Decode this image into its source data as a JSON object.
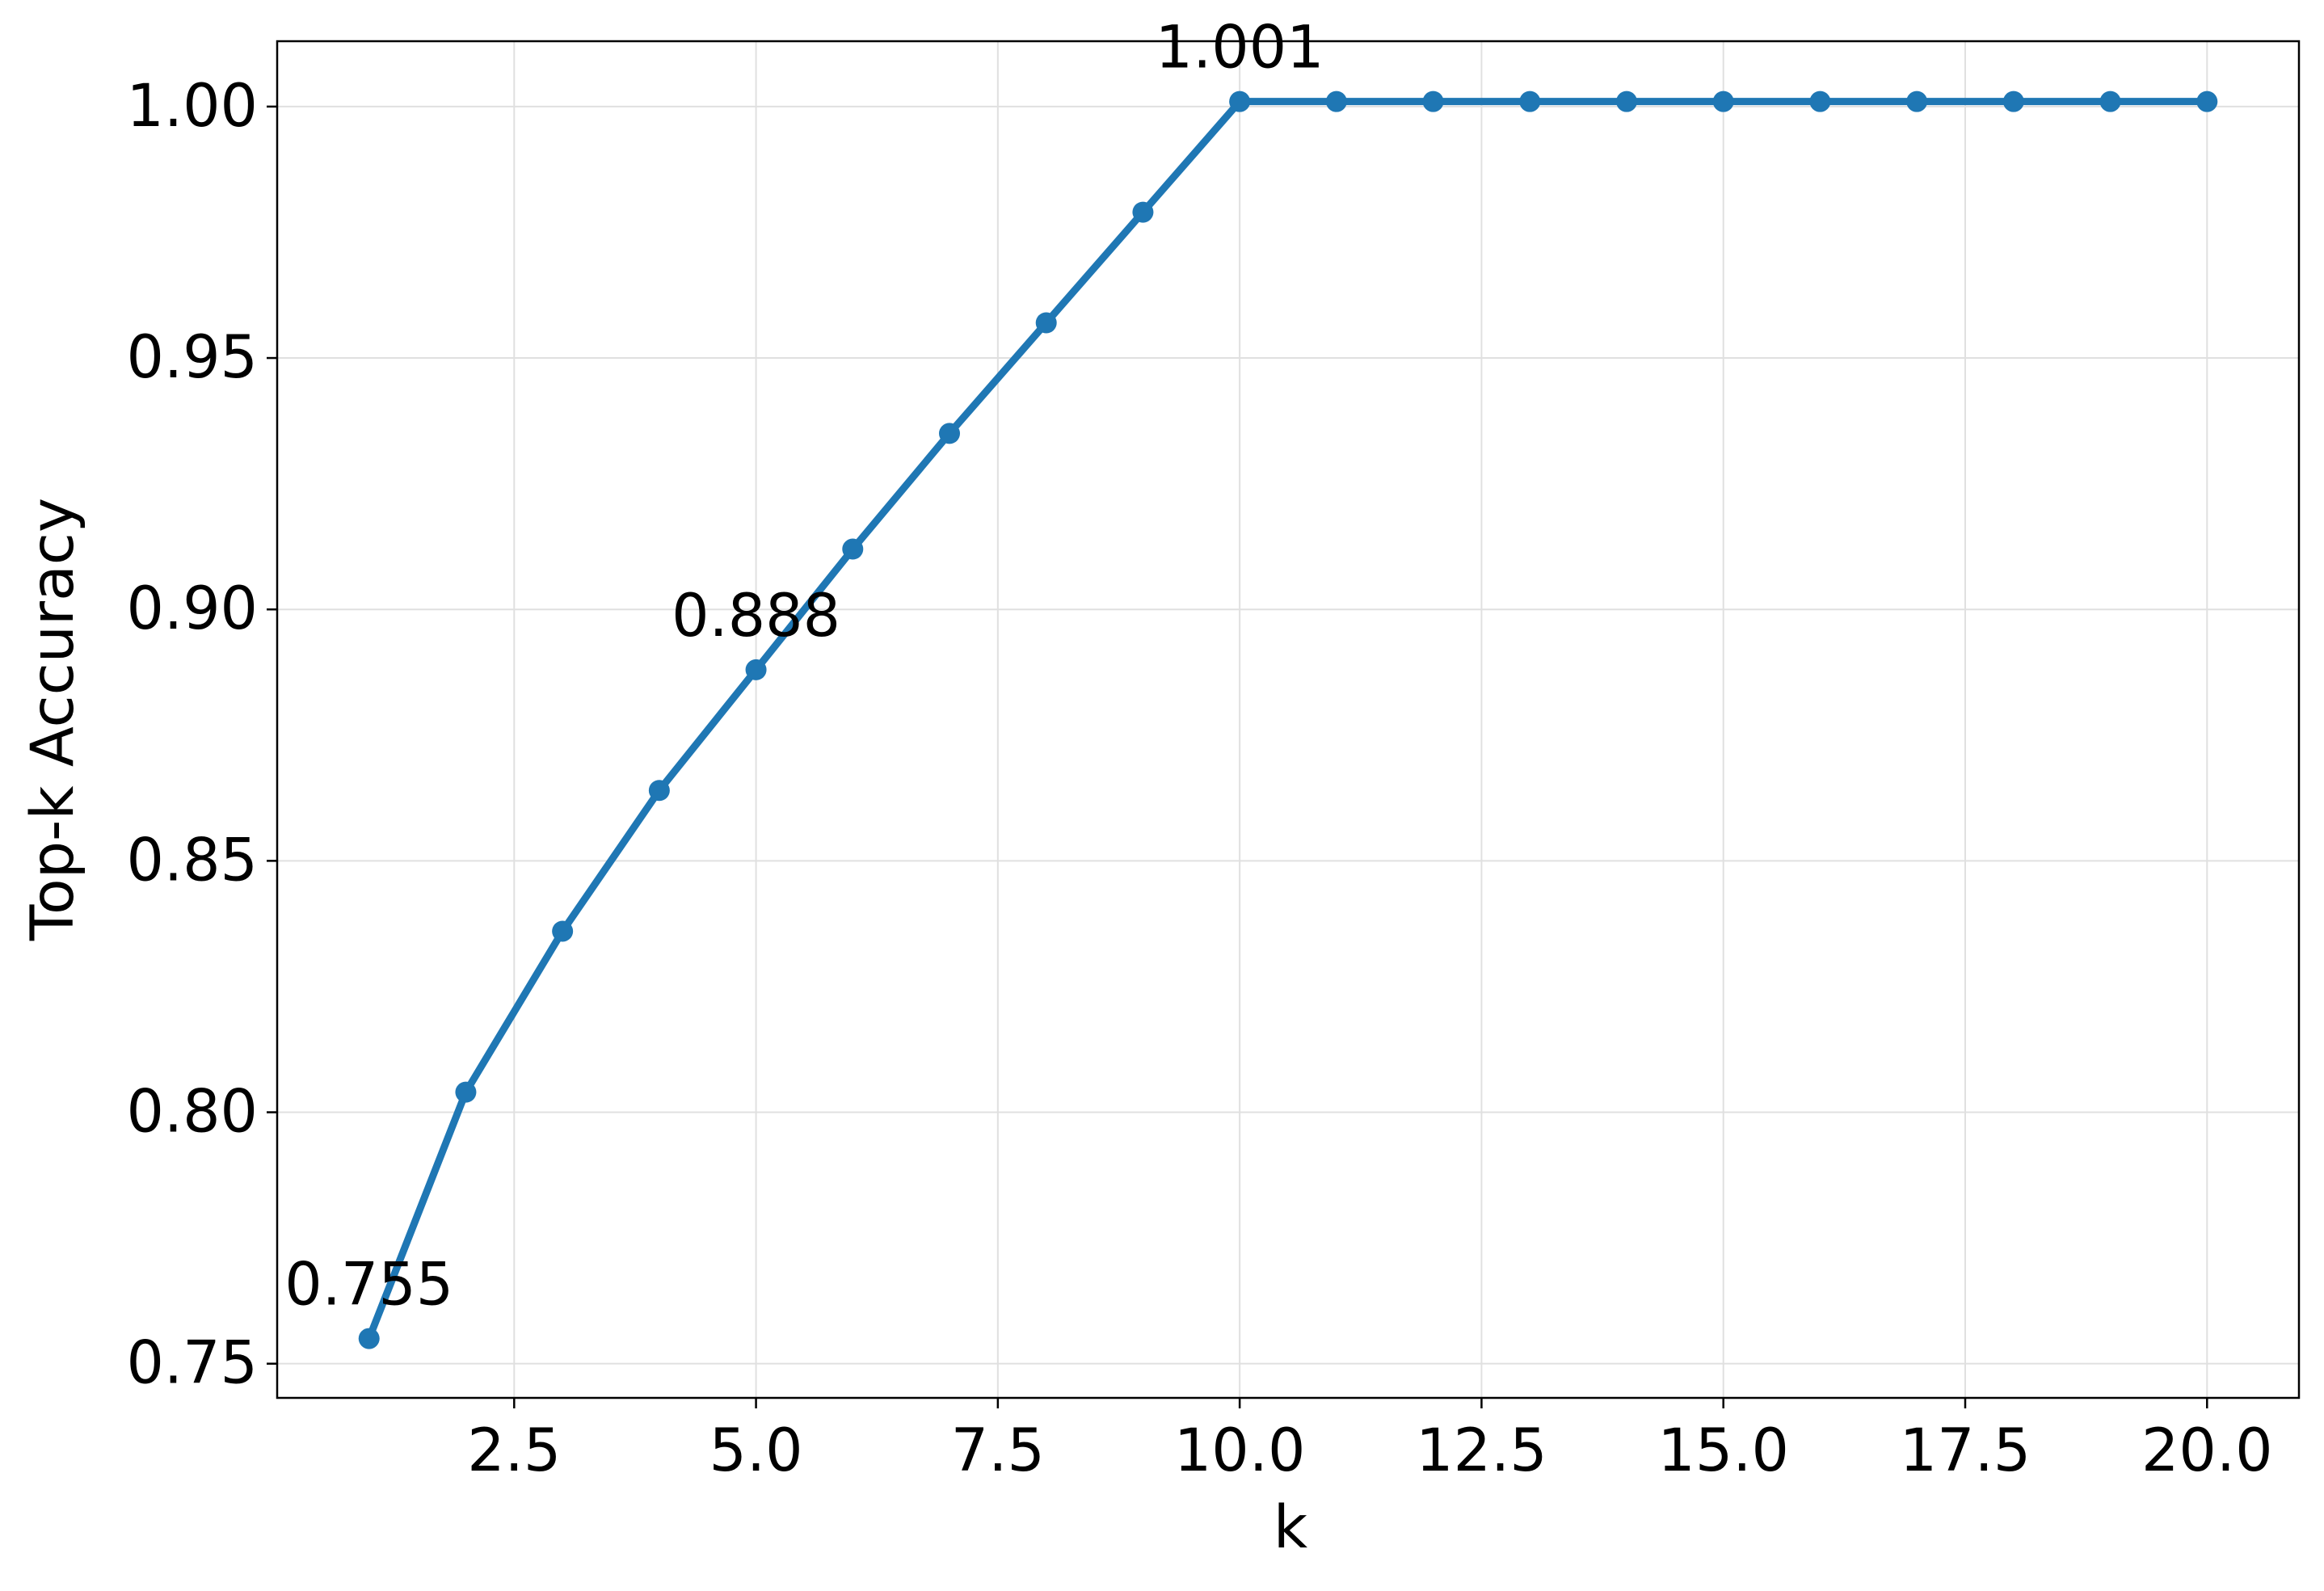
{
  "chart_data": {
    "type": "line",
    "x_label": "k",
    "y_label": "Top-k Accuracy",
    "x": [
      1,
      2,
      3,
      4,
      5,
      6,
      7,
      8,
      9,
      10,
      11,
      12,
      13,
      14,
      15,
      16,
      17,
      18,
      19,
      20
    ],
    "series": [
      {
        "name": "Top-k Accuracy",
        "color": "#1f77b4",
        "values": [
          0.755,
          0.804,
          0.836,
          0.864,
          0.888,
          0.912,
          0.935,
          0.957,
          0.979,
          1.001,
          1.001,
          1.001,
          1.001,
          1.001,
          1.001,
          1.001,
          1.001,
          1.001,
          1.001,
          1.001
        ],
        "value_labels": [
          "0.755",
          null,
          null,
          null,
          "0.888",
          null,
          null,
          null,
          null,
          "1.001",
          null,
          null,
          null,
          null,
          null,
          null,
          null,
          null,
          null,
          null
        ]
      }
    ],
    "xlim": [
      0.05,
      20.95
    ],
    "ylim": [
      0.7432,
      1.013
    ],
    "xticks": [
      2.5,
      {
        "value": 5,
        "label": "5.0"
      },
      7.5,
      {
        "value": 10,
        "label": "10.0"
      },
      12.5,
      {
        "value": 15,
        "label": "15.0"
      },
      17.5,
      {
        "value": 20,
        "label": "20.0"
      }
    ],
    "yticks": [
      0.75,
      {
        "value": 0.8,
        "label": "0.80"
      },
      0.85,
      {
        "value": 0.9,
        "label": "0.90"
      },
      0.95,
      {
        "value": 1,
        "label": "1.00"
      }
    ],
    "grid": true
  }
}
